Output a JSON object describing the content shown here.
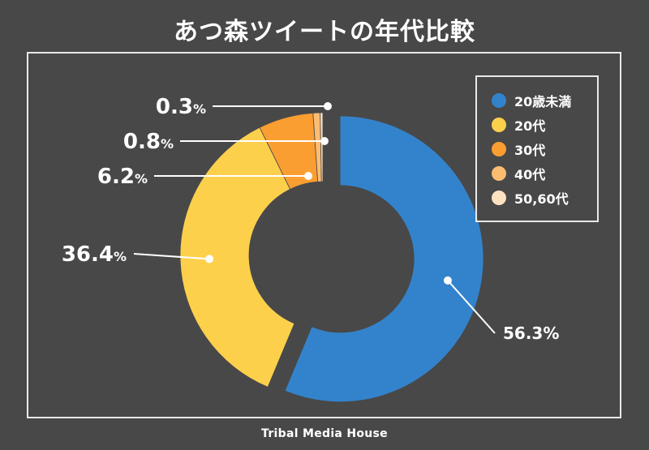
{
  "title": "あつ森ツイートの年代比較",
  "footer": "Tribal Media House",
  "chart_data": {
    "type": "pie",
    "variant": "donut",
    "title": "あつ森ツイートの年代比較",
    "categories": [
      "20歳未満",
      "20代",
      "30代",
      "40代",
      "50,60代"
    ],
    "values": [
      56.3,
      36.4,
      6.2,
      0.8,
      0.3
    ],
    "labels": [
      "56.3%",
      "36.4%",
      "6.2%",
      "0.8%",
      "0.3%"
    ],
    "colors": [
      "#3383cc",
      "#fdd04c",
      "#fb9e31",
      "#fcbd73",
      "#fde2c2"
    ],
    "legend_position": "top-right"
  }
}
